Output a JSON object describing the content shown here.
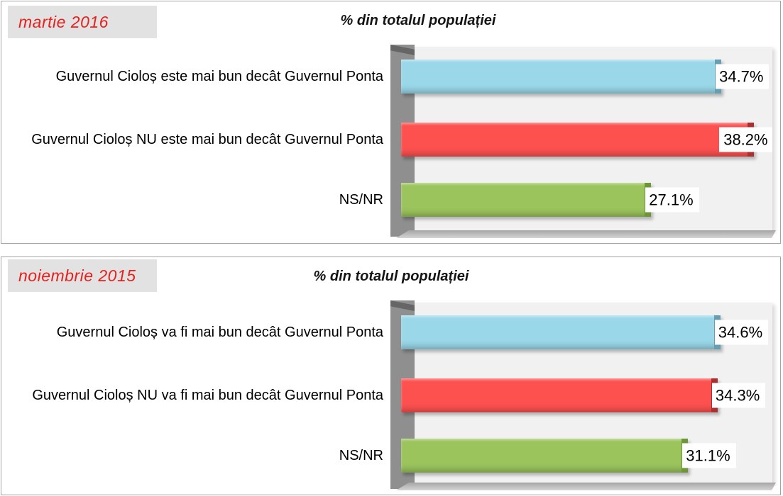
{
  "styles": {
    "badge_bg": "#e2e2e2",
    "badge_text_color": "#e8201d",
    "plot_bg": "#f1f1f1",
    "pillar_color": "#8f8f8f",
    "panel_border": "#a3a3a3"
  },
  "chart_data": [
    {
      "type": "bar",
      "orientation": "horizontal",
      "period_label": "martie 2016",
      "title": "% din totalul populației",
      "xlabel": "",
      "ylabel": "",
      "categories": [
        "Guvernul Cioloș este mai bun decât Guvernul Ponta",
        "Guvernul Cioloș NU este mai bun decât Guvernul Ponta",
        "NS/NR"
      ],
      "values": [
        34.7,
        38.2,
        27.1
      ],
      "value_labels": [
        "34.7%",
        "38.2%",
        "27.1%"
      ],
      "bar_colors": [
        "#9ad8e9",
        "#fd5150",
        "#9bc45d"
      ],
      "bar_cap_colors": [
        "#649eb0",
        "#aa2f31",
        "#6d9637"
      ],
      "xlim": [
        0,
        40
      ],
      "gridlines": false,
      "legend": "none"
    },
    {
      "type": "bar",
      "orientation": "horizontal",
      "period_label": "noiembrie 2015",
      "title": "% din totalul populației",
      "xlabel": "",
      "ylabel": "",
      "categories": [
        "Guvernul Cioloș va fi mai bun decât Guvernul Ponta",
        "Guvernul Cioloș NU va fi mai bun decât Guvernul Ponta",
        "NS/NR"
      ],
      "values": [
        34.6,
        34.3,
        31.1
      ],
      "value_labels": [
        "34.6%",
        "34.3%",
        "31.1%"
      ],
      "bar_colors": [
        "#9ad8e9",
        "#fd5150",
        "#9bc45d"
      ],
      "bar_cap_colors": [
        "#649eb0",
        "#aa2f31",
        "#6d9637"
      ],
      "xlim": [
        0,
        40
      ],
      "gridlines": false,
      "legend": "none"
    }
  ]
}
